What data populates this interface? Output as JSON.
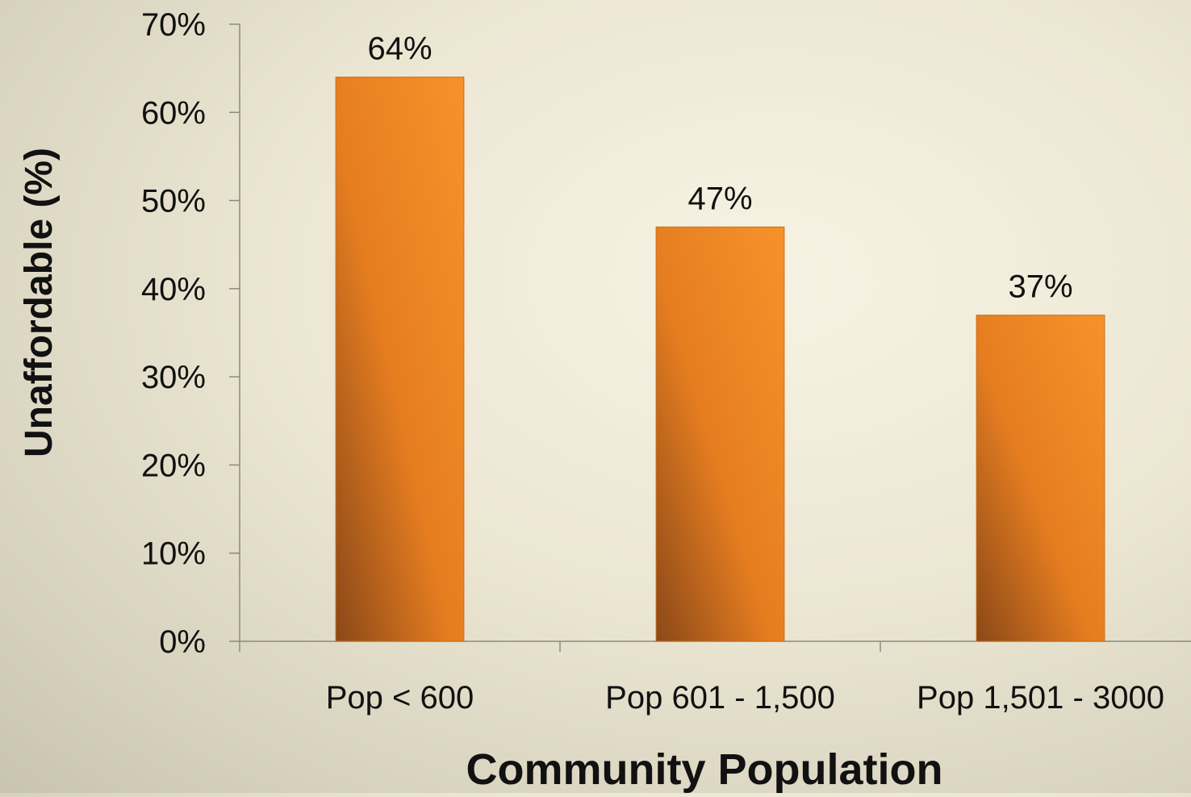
{
  "chart_data": {
    "type": "bar",
    "title": "",
    "xlabel": "Community Population",
    "ylabel": "Unaffordable (%)",
    "categories": [
      "Pop < 600",
      "Pop 601 - 1,500",
      "Pop 1,501 - 3000"
    ],
    "values": [
      64,
      47,
      37
    ],
    "data_labels": [
      "64%",
      "47%",
      "37%"
    ],
    "ylim": [
      0,
      70
    ],
    "yticks": [
      0,
      10,
      20,
      30,
      40,
      50,
      60,
      70
    ],
    "ytick_labels": [
      "0%",
      "10%",
      "20%",
      "30%",
      "40%",
      "50%",
      "60%",
      "70%"
    ],
    "grid": false,
    "legend": "none",
    "colors": {
      "bar_light": "#f7922a",
      "bar_mid": "#e57d20",
      "bar_dark": "#8a4818",
      "axis": "#8c8a80",
      "text": "#111111"
    }
  }
}
